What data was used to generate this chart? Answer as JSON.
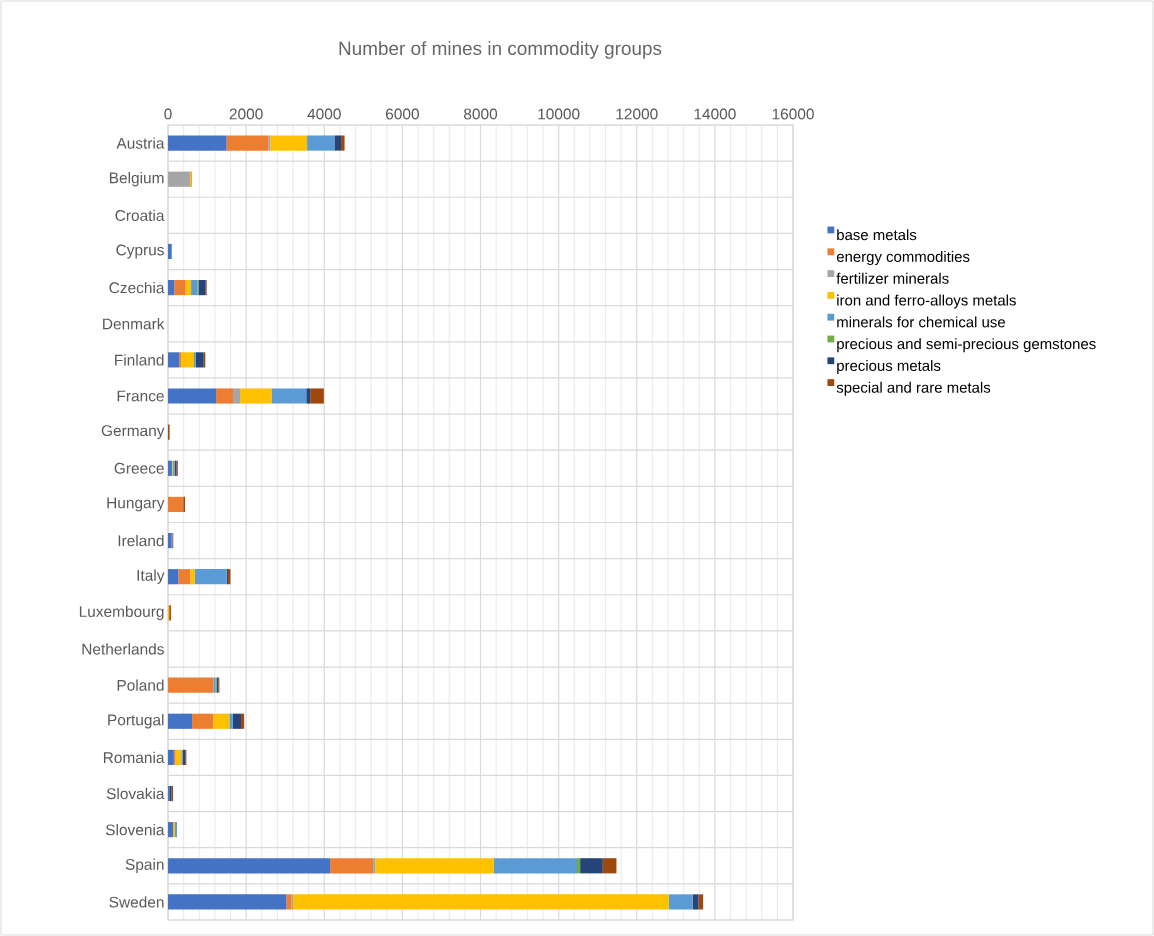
{
  "chart_data": {
    "type": "bar",
    "orientation": "horizontal",
    "stacked": true,
    "title": "Number of mines in commodity groups",
    "categories": [
      "Austria",
      "Belgium",
      "Croatia",
      "Cyprus",
      "Czechia",
      "Denmark",
      "Finland",
      "France",
      "Germany",
      "Greece",
      "Hungary",
      "Ireland",
      "Italy",
      "Luxembourg",
      "Netherlands",
      "Poland",
      "Portugal",
      "Romania",
      "Slovakia",
      "Slovenia",
      "Spain",
      "Sweden"
    ],
    "series": [
      {
        "name": "base metals",
        "color": "#4472c4",
        "values": [
          1500,
          null,
          null,
          95,
          160,
          null,
          290,
          1230,
          null,
          100,
          null,
          95,
          265,
          null,
          null,
          null,
          615,
          150,
          50,
          130,
          4150,
          3030
        ]
      },
      {
        "name": "energy commodities",
        "color": "#ed7d31",
        "values": [
          1070,
          null,
          null,
          null,
          290,
          null,
          45,
          435,
          null,
          null,
          390,
          null,
          305,
          null,
          null,
          1160,
          545,
          40,
          null,
          null,
          1100,
          130
        ]
      },
      {
        "name": "fertilizer minerals",
        "color": "#a5a5a5",
        "values": [
          50,
          565,
          null,
          null,
          null,
          null,
          null,
          180,
          null,
          null,
          null,
          null,
          null,
          null,
          null,
          null,
          null,
          null,
          null,
          null,
          60,
          40
        ]
      },
      {
        "name": "iron and ferro-alloys metals",
        "color": "#ffc000",
        "values": [
          940,
          35,
          null,
          null,
          140,
          null,
          330,
          805,
          null,
          30,
          null,
          null,
          120,
          30,
          null,
          null,
          410,
          150,
          null,
          50,
          3030,
          9620
        ]
      },
      {
        "name": "minerals for chemical use",
        "color": "#5b9bd5",
        "values": [
          700,
          null,
          null,
          null,
          160,
          null,
          45,
          890,
          null,
          40,
          null,
          15,
          810,
          null,
          null,
          60,
          90,
          40,
          null,
          50,
          2130,
          610
        ]
      },
      {
        "name": "precious and semi-precious gemstones",
        "color": "#70ad47",
        "values": [
          null,
          null,
          null,
          null,
          30,
          null,
          null,
          null,
          null,
          null,
          null,
          null,
          null,
          null,
          null,
          30,
          null,
          null,
          null,
          null,
          80,
          null
        ]
      },
      {
        "name": "precious metals",
        "color": "#264478",
        "values": [
          170,
          null,
          null,
          null,
          185,
          null,
          205,
          100,
          null,
          50,
          null,
          null,
          35,
          null,
          null,
          40,
          210,
          60,
          40,
          null,
          580,
          150
        ]
      },
      {
        "name": "special and rare metals",
        "color": "#9e480e",
        "values": [
          90,
          15,
          null,
          null,
          25,
          null,
          40,
          350,
          40,
          30,
          45,
          25,
          65,
          45,
          null,
          25,
          80,
          30,
          40,
          null,
          350,
          120
        ]
      }
    ],
    "xlim": [
      0,
      16000
    ],
    "xticks": [
      0,
      2000,
      4000,
      6000,
      8000,
      10000,
      12000,
      14000,
      16000
    ],
    "grid": true,
    "legend": "right"
  }
}
